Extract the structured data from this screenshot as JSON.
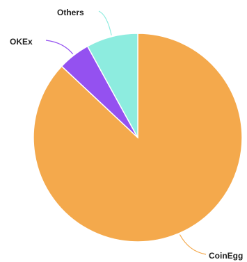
{
  "chart_data": {
    "type": "pie",
    "title": "",
    "slices": [
      {
        "label": "CoinEgg",
        "value": 87.0,
        "color": "#f4a94c"
      },
      {
        "label": "OKEx",
        "value": 5.0,
        "color": "#9451f0"
      },
      {
        "label": "Others",
        "value": 8.0,
        "color": "#8decdf"
      }
    ],
    "start": "12 o'clock",
    "direction": "clockwise",
    "legend": "none"
  }
}
